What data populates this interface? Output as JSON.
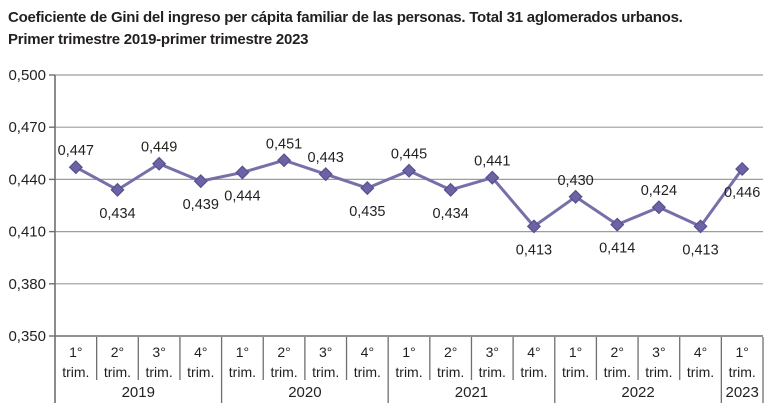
{
  "title": {
    "line1": "Coeficiente de Gini del ingreso per cápita familiar de las personas. Total 31 aglomerados urbanos.",
    "line2": "Primer trimestre 2019-primer trimestre 2023"
  },
  "chart_data": {
    "type": "line",
    "title": "Coeficiente de Gini del ingreso per cápita familiar de las personas. Total 31 aglomerados urbanos. Primer trimestre 2019-primer trimestre 2023",
    "x_groups": [
      {
        "year": "2019",
        "quarters": 4
      },
      {
        "year": "2020",
        "quarters": 4
      },
      {
        "year": "2021",
        "quarters": 4
      },
      {
        "year": "2022",
        "quarters": 4
      },
      {
        "year": "2023",
        "quarters": 1
      }
    ],
    "quarter_top_labels": [
      "1°",
      "2°",
      "3°",
      "4°",
      "1°",
      "2°",
      "3°",
      "4°",
      "1°",
      "2°",
      "3°",
      "4°",
      "1°",
      "2°",
      "3°",
      "4°",
      "1°"
    ],
    "quarter_bottom_label": "trim.",
    "series": [
      {
        "name": "Coeficiente de Gini",
        "values": [
          0.447,
          0.434,
          0.449,
          0.439,
          0.444,
          0.451,
          0.443,
          0.435,
          0.445,
          0.434,
          0.441,
          0.413,
          0.43,
          0.414,
          0.424,
          0.413,
          0.446
        ],
        "labels": [
          "0,447",
          "0,434",
          "0,449",
          "0,439",
          "0,444",
          "0,451",
          "0,443",
          "0,435",
          "0,445",
          "0,434",
          "0,441",
          "0,413",
          "0,430",
          "0,414",
          "0,424",
          "0,413",
          "0,446"
        ],
        "label_positions": [
          "above",
          "below",
          "above",
          "below",
          "below",
          "above",
          "above",
          "below",
          "above",
          "below",
          "above",
          "below",
          "above",
          "below",
          "above",
          "below",
          "below"
        ]
      }
    ],
    "y_axis": {
      "min": 0.35,
      "max": 0.5,
      "tick_values": [
        0.5,
        0.47,
        0.44,
        0.41,
        0.38,
        0.35
      ],
      "tick_labels": [
        "0,500",
        "0,470",
        "0,440",
        "0,410",
        "0,380",
        "0,350"
      ]
    },
    "grid": true,
    "legend": "none",
    "colors": {
      "line": "#7570aa",
      "marker_fill": "#6c63a4",
      "marker_stroke": "#55508e",
      "grid": "#9d9d9d",
      "axis": "#6f6f6f",
      "text": "#231f20"
    }
  }
}
